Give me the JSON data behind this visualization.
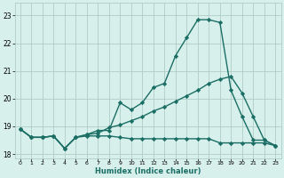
{
  "title": "",
  "xlabel": "Humidex (Indice chaleur)",
  "bg_color": "#d8f0ec",
  "grid_color": "#b0cdc8",
  "line_color": "#1a6e64",
  "xlim": [
    -0.5,
    23.5
  ],
  "ylim": [
    17.85,
    23.45
  ],
  "yticks": [
    18,
    19,
    20,
    21,
    22,
    23
  ],
  "xticks": [
    0,
    1,
    2,
    3,
    4,
    5,
    6,
    7,
    8,
    9,
    10,
    11,
    12,
    13,
    14,
    15,
    16,
    17,
    18,
    19,
    20,
    21,
    22,
    23
  ],
  "series": [
    {
      "x": [
        0,
        1,
        2,
        3,
        4,
        5,
        6,
        7,
        8,
        9,
        10,
        11,
        12,
        13,
        14,
        15,
        16,
        17,
        18,
        19,
        20,
        21,
        22,
        23
      ],
      "y": [
        18.9,
        18.6,
        18.6,
        18.65,
        18.2,
        18.6,
        18.7,
        18.85,
        18.85,
        19.85,
        19.6,
        19.85,
        20.4,
        20.55,
        21.55,
        22.2,
        22.85,
        22.85,
        22.75,
        20.3,
        19.35,
        18.5,
        18.5,
        18.3
      ]
    },
    {
      "x": [
        0,
        1,
        2,
        3,
        4,
        5,
        6,
        7,
        8,
        9,
        10,
        11,
        12,
        13,
        14,
        15,
        16,
        17,
        18,
        19,
        20,
        21,
        22,
        23
      ],
      "y": [
        18.9,
        18.6,
        18.6,
        18.65,
        18.2,
        18.6,
        18.7,
        18.75,
        18.95,
        19.05,
        19.2,
        19.35,
        19.55,
        19.7,
        19.9,
        20.1,
        20.3,
        20.55,
        20.7,
        20.8,
        20.2,
        19.35,
        18.5,
        18.3
      ]
    },
    {
      "x": [
        0,
        1,
        2,
        3,
        4,
        5,
        6,
        7,
        8,
        9,
        10,
        11,
        12,
        13,
        14,
        15,
        16,
        17,
        18,
        19,
        20,
        21,
        22,
        23
      ],
      "y": [
        18.9,
        18.6,
        18.6,
        18.65,
        18.2,
        18.6,
        18.65,
        18.65,
        18.65,
        18.6,
        18.55,
        18.55,
        18.55,
        18.55,
        18.55,
        18.55,
        18.55,
        18.55,
        18.4,
        18.4,
        18.4,
        18.4,
        18.4,
        18.3
      ]
    }
  ]
}
